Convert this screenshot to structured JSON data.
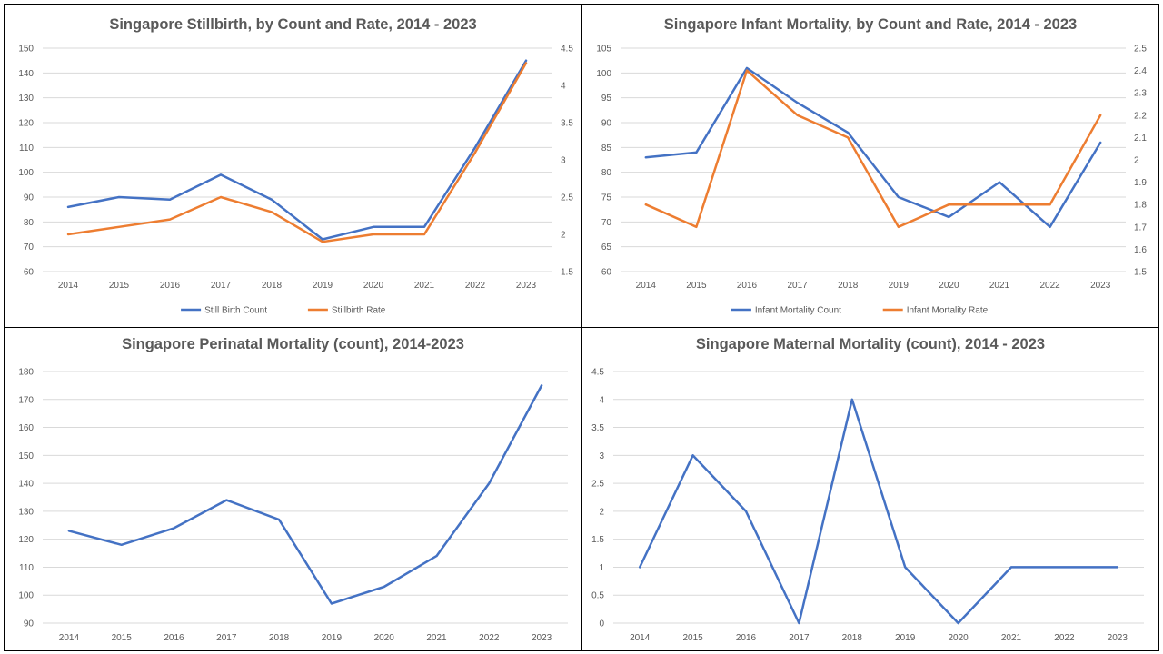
{
  "chart_data": [
    {
      "type": "line",
      "title": "Singapore Stillbirth, by Count and Rate, 2014 - 2023",
      "categories": [
        "2014",
        "2015",
        "2016",
        "2017",
        "2018",
        "2019",
        "2020",
        "2021",
        "2022",
        "2023"
      ],
      "ylim": [
        60,
        150
      ],
      "ystep": 10,
      "ylim_right": [
        1.5,
        4.5
      ],
      "ystep_right": 0.5,
      "grid": true,
      "legend": "bottom",
      "series": [
        {
          "name": "Still Birth Count",
          "axis": "left",
          "color": "#4472c4",
          "values": [
            86,
            90,
            89,
            99,
            89,
            73,
            78,
            78,
            110,
            145
          ]
        },
        {
          "name": "Stillbirth Rate",
          "axis": "right",
          "color": "#ed7d31",
          "values": [
            2.0,
            2.1,
            2.2,
            2.5,
            2.3,
            1.9,
            2.0,
            2.0,
            3.1,
            4.3
          ]
        }
      ]
    },
    {
      "type": "line",
      "title": "Singapore Infant Mortality, by Count and Rate, 2014 - 2023",
      "categories": [
        "2014",
        "2015",
        "2016",
        "2017",
        "2018",
        "2019",
        "2020",
        "2021",
        "2022",
        "2023"
      ],
      "ylim": [
        60,
        105
      ],
      "ystep": 5,
      "ylim_right": [
        1.5,
        2.5
      ],
      "ystep_right": 0.1,
      "grid": true,
      "legend": "bottom",
      "series": [
        {
          "name": "Infant Mortality Count",
          "axis": "left",
          "color": "#4472c4",
          "values": [
            83,
            84,
            101,
            94,
            88,
            75,
            71,
            78,
            69,
            86
          ]
        },
        {
          "name": "Infant Mortality Rate",
          "axis": "right",
          "color": "#ed7d31",
          "values": [
            1.8,
            1.7,
            2.4,
            2.2,
            2.1,
            1.7,
            1.8,
            1.8,
            1.8,
            2.2
          ]
        }
      ]
    },
    {
      "type": "line",
      "title": "Singapore Perinatal Mortality (count), 2014-2023",
      "categories": [
        "2014",
        "2015",
        "2016",
        "2017",
        "2018",
        "2019",
        "2020",
        "2021",
        "2022",
        "2023"
      ],
      "ylim": [
        90,
        180
      ],
      "ystep": 10,
      "grid": true,
      "legend": "none",
      "series": [
        {
          "name": "",
          "axis": "left",
          "color": "#4472c4",
          "values": [
            123,
            118,
            124,
            134,
            127,
            97,
            103,
            114,
            140,
            175
          ]
        }
      ]
    },
    {
      "type": "line",
      "title": "Singapore Maternal Mortality (count), 2014 - 2023",
      "categories": [
        "2014",
        "2015",
        "2016",
        "2017",
        "2018",
        "2019",
        "2020",
        "2021",
        "2022",
        "2023"
      ],
      "ylim": [
        0,
        4.5
      ],
      "ystep": 0.5,
      "grid": true,
      "legend": "none",
      "series": [
        {
          "name": "",
          "axis": "left",
          "color": "#4472c4",
          "values": [
            1,
            3,
            2,
            0,
            4,
            1,
            0,
            1,
            1,
            1
          ]
        }
      ]
    }
  ]
}
